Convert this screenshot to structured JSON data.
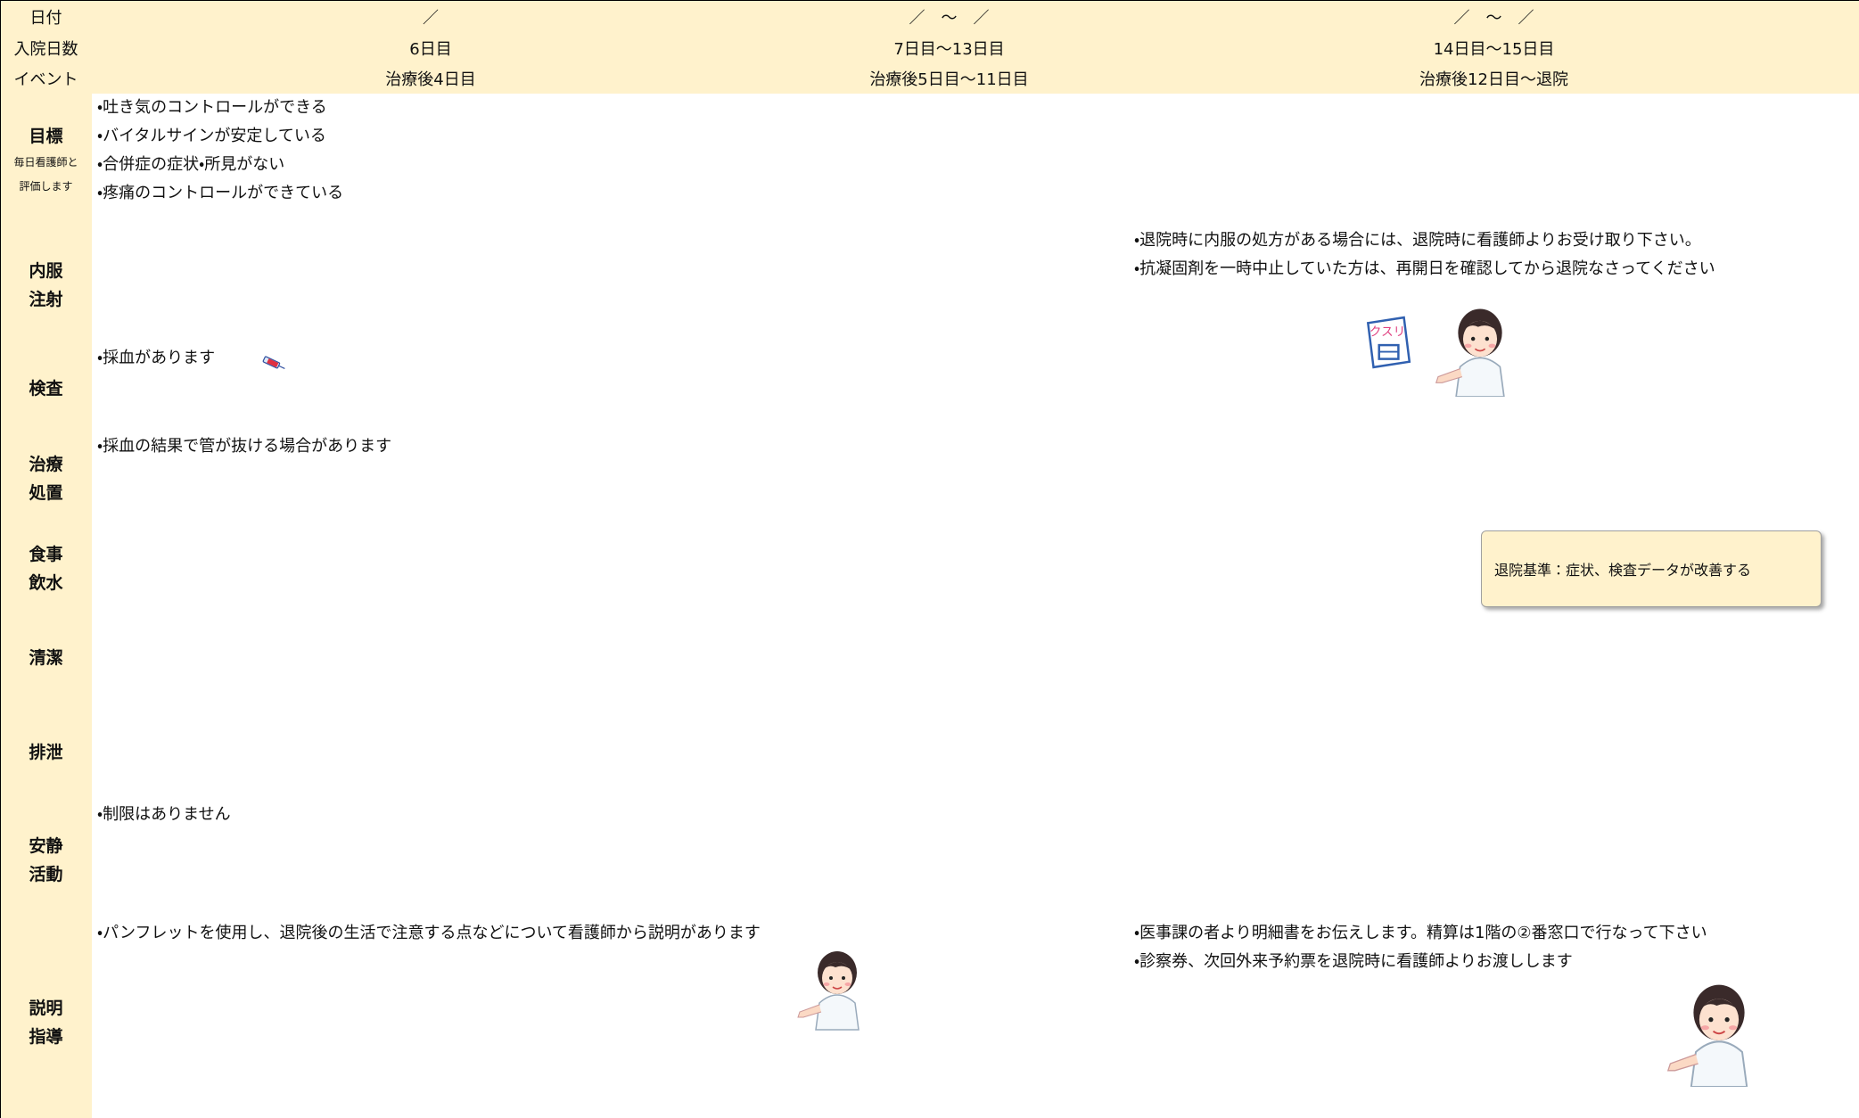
{
  "header": {
    "rows": [
      {
        "label": "日付",
        "cells": [
          "／",
          "／　～　／",
          "／　～　／"
        ]
      },
      {
        "label": "入院日数",
        "cells": [
          "6日目",
          "7日目～13日目",
          "14日目～15日目"
        ]
      },
      {
        "label": "イベント",
        "cells": [
          "治療後4日目",
          "治療後5日目～11日目",
          "治療後12日目～退院"
        ]
      }
    ]
  },
  "rows": [
    {
      "label": [
        "目標"
      ],
      "note": [
        "毎日看護師と",
        "評価します"
      ],
      "items": [
        "・吐き気のコントロールができる",
        "・バイタルサインが安定している",
        "・合併症の症状・所見がない",
        "・疼痛のコントロールができている"
      ]
    },
    {
      "label": [
        "内服",
        "注射"
      ],
      "discharge_items": [
        "・退院時に内服の処方がある場合には、退院時に看護師よりお受け取り下さい。",
        "・抗凝固剤を一時中止していた方は、再開日を確認してから退院なさってください"
      ]
    },
    {
      "label": [
        "検査"
      ],
      "items": [
        "・採血があります"
      ]
    },
    {
      "label": [
        "治療",
        "処置"
      ],
      "items": [
        "・採血の結果で管が抜ける場合があります"
      ]
    },
    {
      "label": [
        "食事",
        "飲水"
      ]
    },
    {
      "label": [
        "清潔"
      ]
    },
    {
      "label": [
        "排泄"
      ]
    },
    {
      "label": [
        "安静",
        "活動"
      ],
      "items": [
        "・制限はありません"
      ]
    },
    {
      "label": [
        "説明",
        "指導"
      ],
      "items": [
        "・パンフレットを使用し、退院後の生活で注意する点などについて看護師から説明があります"
      ],
      "discharge_items": [
        "・医事課の者より明細書をお伝えします。精算は1階の②番窓口で行なって下さい",
        "・診察券、次回外来予約票を退院時に看護師よりお渡しします"
      ]
    }
  ],
  "callout": "退院基準：症状、検査データが改善する"
}
